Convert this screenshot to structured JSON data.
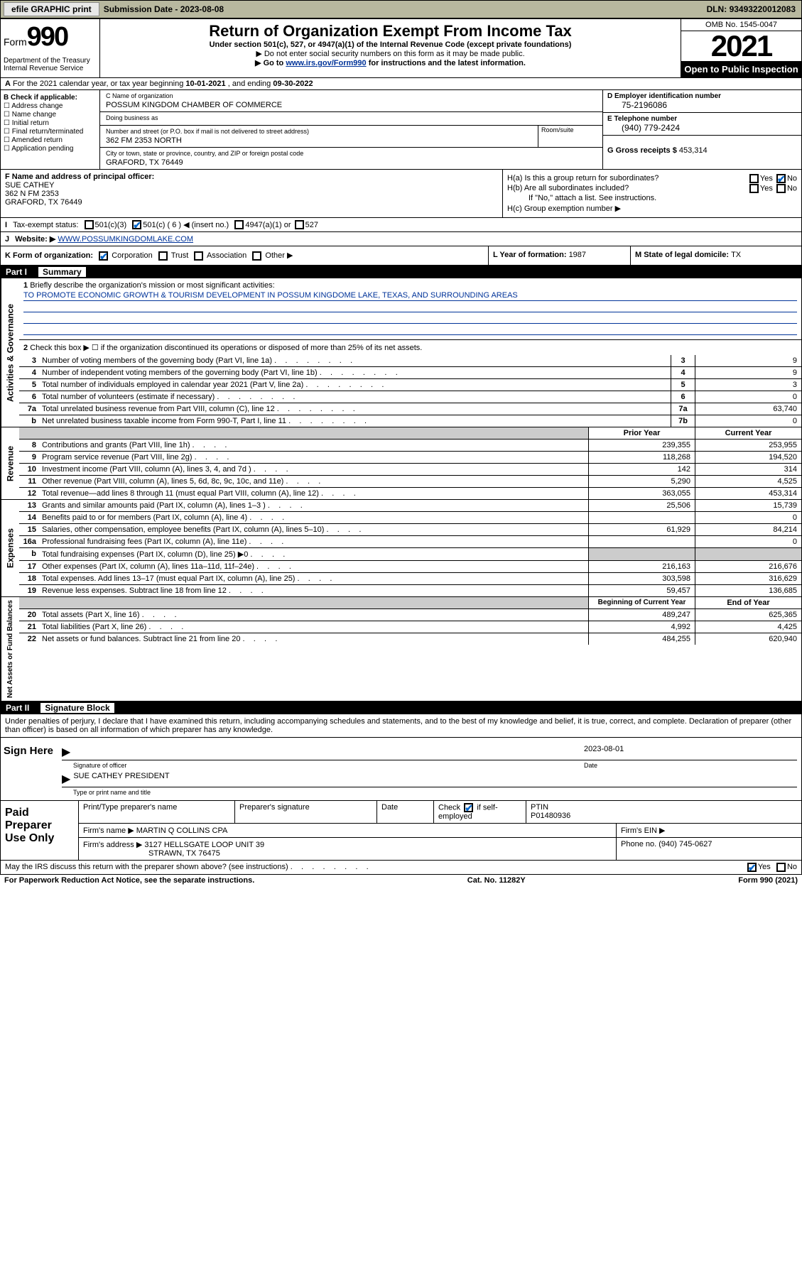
{
  "topbar": {
    "efile": "efile GRAPHIC print",
    "sub_label": "Submission Date - ",
    "sub_date": "2023-08-08",
    "dln_label": "DLN: ",
    "dln": "93493220012083"
  },
  "header": {
    "form_word": "Form",
    "form_num": "990",
    "title": "Return of Organization Exempt From Income Tax",
    "subtitle": "Under section 501(c), 527, or 4947(a)(1) of the Internal Revenue Code (except private foundations)",
    "note1": "▶ Do not enter social security numbers on this form as it may be made public.",
    "note2_pre": "▶ Go to ",
    "note2_link": "www.irs.gov/Form990",
    "note2_post": " for instructions and the latest information.",
    "dept": "Department of the Treasury\nInternal Revenue Service",
    "omb": "OMB No. 1545-0047",
    "year": "2021",
    "open": "Open to Public Inspection"
  },
  "rowA": {
    "prefix": "A",
    "text1": " For the 2021 calendar year, or tax year beginning ",
    "begin": "10-01-2021",
    "text2": " , and ending ",
    "end": "09-30-2022"
  },
  "colB": {
    "label": "B Check if applicable:",
    "items": [
      "Address change",
      "Name change",
      "Initial return",
      "Final return/terminated",
      "Amended return",
      "Application pending"
    ]
  },
  "colC": {
    "name_lbl": "C Name of organization",
    "name": "POSSUM KINGDOM CHAMBER OF COMMERCE",
    "dba_lbl": "Doing business as",
    "dba": "",
    "street_lbl": "Number and street (or P.O. box if mail is not delivered to street address)",
    "room_lbl": "Room/suite",
    "street": "362 FM 2353 NORTH",
    "city_lbl": "City or town, state or province, country, and ZIP or foreign postal code",
    "city": "GRAFORD, TX  76449"
  },
  "colD": {
    "ein_lbl": "D Employer identification number",
    "ein": "75-2196086",
    "tel_lbl": "E Telephone number",
    "tel": "(940) 779-2424",
    "gross_lbl": "G Gross receipts $ ",
    "gross": "453,314"
  },
  "rowF": {
    "lbl": "F Name and address of principal officer:",
    "name": "SUE CATHEY",
    "addr1": "362 N FM 2353",
    "addr2": "GRAFORD, TX  76449"
  },
  "rowH": {
    "ha": "H(a)  Is this a group return for subordinates?",
    "hb": "H(b)  Are all subordinates included?",
    "hb_note": "If \"No,\" attach a list. See instructions.",
    "hc": "H(c)  Group exemption number ▶",
    "yes": "Yes",
    "no": "No"
  },
  "rowI": {
    "lbl": "I",
    "text": "Tax-exempt status:",
    "opts": [
      "501(c)(3)",
      "501(c) ( 6 ) ◀ (insert no.)",
      "4947(a)(1) or",
      "527"
    ]
  },
  "rowJ": {
    "lbl": "J",
    "text": "Website: ▶",
    "url": "WWW.POSSUMKINGDOMLAKE.COM"
  },
  "rowK": {
    "lbl": "K Form of organization:",
    "opts": [
      "Corporation",
      "Trust",
      "Association",
      "Other ▶"
    ]
  },
  "rowL": {
    "lbl": "L Year of formation: ",
    "val": "1987"
  },
  "rowM": {
    "lbl": "M State of legal domicile: ",
    "val": "TX"
  },
  "part1": {
    "num": "Part I",
    "title": "Summary"
  },
  "summary": {
    "q1_lbl": "1",
    "q1": "Briefly describe the organization's mission or most significant activities:",
    "q1_val": "TO PROMOTE ECONOMIC GROWTH & TOURISM DEVELOPMENT IN POSSUM KINGDOME LAKE, TEXAS, AND SURROUNDING AREAS",
    "q2_lbl": "2",
    "q2": "Check this box ▶ ☐  if the organization discontinued its operations or disposed of more than 25% of its net assets.",
    "rows_single": [
      {
        "n": "3",
        "t": "Number of voting members of the governing body (Part VI, line 1a)",
        "box": "3",
        "v": "9"
      },
      {
        "n": "4",
        "t": "Number of independent voting members of the governing body (Part VI, line 1b)",
        "box": "4",
        "v": "9"
      },
      {
        "n": "5",
        "t": "Total number of individuals employed in calendar year 2021 (Part V, line 2a)",
        "box": "5",
        "v": "3"
      },
      {
        "n": "6",
        "t": "Total number of volunteers (estimate if necessary)",
        "box": "6",
        "v": "0"
      },
      {
        "n": "7a",
        "t": "Total unrelated business revenue from Part VIII, column (C), line 12",
        "box": "7a",
        "v": "63,740"
      },
      {
        "n": "b",
        "t": "Net unrelated business taxable income from Form 990-T, Part I, line 11",
        "box": "7b",
        "v": "0"
      }
    ],
    "col_hdr_prior": "Prior Year",
    "col_hdr_curr": "Current Year",
    "revenue": [
      {
        "n": "8",
        "t": "Contributions and grants (Part VIII, line 1h)",
        "p": "239,355",
        "c": "253,955"
      },
      {
        "n": "9",
        "t": "Program service revenue (Part VIII, line 2g)",
        "p": "118,268",
        "c": "194,520"
      },
      {
        "n": "10",
        "t": "Investment income (Part VIII, column (A), lines 3, 4, and 7d )",
        "p": "142",
        "c": "314"
      },
      {
        "n": "11",
        "t": "Other revenue (Part VIII, column (A), lines 5, 6d, 8c, 9c, 10c, and 11e)",
        "p": "5,290",
        "c": "4,525"
      },
      {
        "n": "12",
        "t": "Total revenue—add lines 8 through 11 (must equal Part VIII, column (A), line 12)",
        "p": "363,055",
        "c": "453,314"
      }
    ],
    "expenses": [
      {
        "n": "13",
        "t": "Grants and similar amounts paid (Part IX, column (A), lines 1–3 )",
        "p": "25,506",
        "c": "15,739"
      },
      {
        "n": "14",
        "t": "Benefits paid to or for members (Part IX, column (A), line 4)",
        "p": "",
        "c": "0"
      },
      {
        "n": "15",
        "t": "Salaries, other compensation, employee benefits (Part IX, column (A), lines 5–10)",
        "p": "61,929",
        "c": "84,214"
      },
      {
        "n": "16a",
        "t": "Professional fundraising fees (Part IX, column (A), line 11e)",
        "p": "",
        "c": "0"
      },
      {
        "n": "b",
        "t": "Total fundraising expenses (Part IX, column (D), line 25) ▶0",
        "p": "SHADE",
        "c": "SHADE"
      },
      {
        "n": "17",
        "t": "Other expenses (Part IX, column (A), lines 11a–11d, 11f–24e)",
        "p": "216,163",
        "c": "216,676"
      },
      {
        "n": "18",
        "t": "Total expenses. Add lines 13–17 (must equal Part IX, column (A), line 25)",
        "p": "303,598",
        "c": "316,629"
      },
      {
        "n": "19",
        "t": "Revenue less expenses. Subtract line 18 from line 12",
        "p": "59,457",
        "c": "136,685"
      }
    ],
    "col_hdr_begin": "Beginning of Current Year",
    "col_hdr_end": "End of Year",
    "net": [
      {
        "n": "20",
        "t": "Total assets (Part X, line 16)",
        "p": "489,247",
        "c": "625,365"
      },
      {
        "n": "21",
        "t": "Total liabilities (Part X, line 26)",
        "p": "4,992",
        "c": "4,425"
      },
      {
        "n": "22",
        "t": "Net assets or fund balances. Subtract line 21 from line 20",
        "p": "484,255",
        "c": "620,940"
      }
    ],
    "vtabs": {
      "gov": "Activities & Governance",
      "rev": "Revenue",
      "exp": "Expenses",
      "net": "Net Assets or Fund Balances"
    }
  },
  "part2": {
    "num": "Part II",
    "title": "Signature Block"
  },
  "sig": {
    "perjury": "Under penalties of perjury, I declare that I have examined this return, including accompanying schedules and statements, and to the best of my knowledge and belief, it is true, correct, and complete. Declaration of preparer (other than officer) is based on all information of which preparer has any knowledge.",
    "sign_here": "Sign Here",
    "sig_officer": "Signature of officer",
    "date_lbl": "Date",
    "date": "2023-08-01",
    "name_title": "SUE CATHEY PRESIDENT",
    "name_title_lbl": "Type or print name and title"
  },
  "prep": {
    "title": "Paid Preparer Use Only",
    "h1": "Print/Type preparer's name",
    "h2": "Preparer's signature",
    "h3": "Date",
    "h4_pre": "Check",
    "h4_post": "if self-employed",
    "h5": "PTIN",
    "ptin": "P01480936",
    "firm_name_lbl": "Firm's name    ▶",
    "firm_name": "MARTIN Q COLLINS CPA",
    "firm_ein_lbl": "Firm's EIN ▶",
    "firm_addr_lbl": "Firm's address ▶",
    "firm_addr1": "3127 HELLSGATE LOOP UNIT 39",
    "firm_addr2": "STRAWN, TX  76475",
    "phone_lbl": "Phone no. ",
    "phone": "(940) 745-0627"
  },
  "footer": {
    "discuss": "May the IRS discuss this return with the preparer shown above? (see instructions)",
    "yes": "Yes",
    "no": "No",
    "pra": "For Paperwork Reduction Act Notice, see the separate instructions.",
    "cat": "Cat. No. 11282Y",
    "form": "Form 990 (2021)"
  }
}
